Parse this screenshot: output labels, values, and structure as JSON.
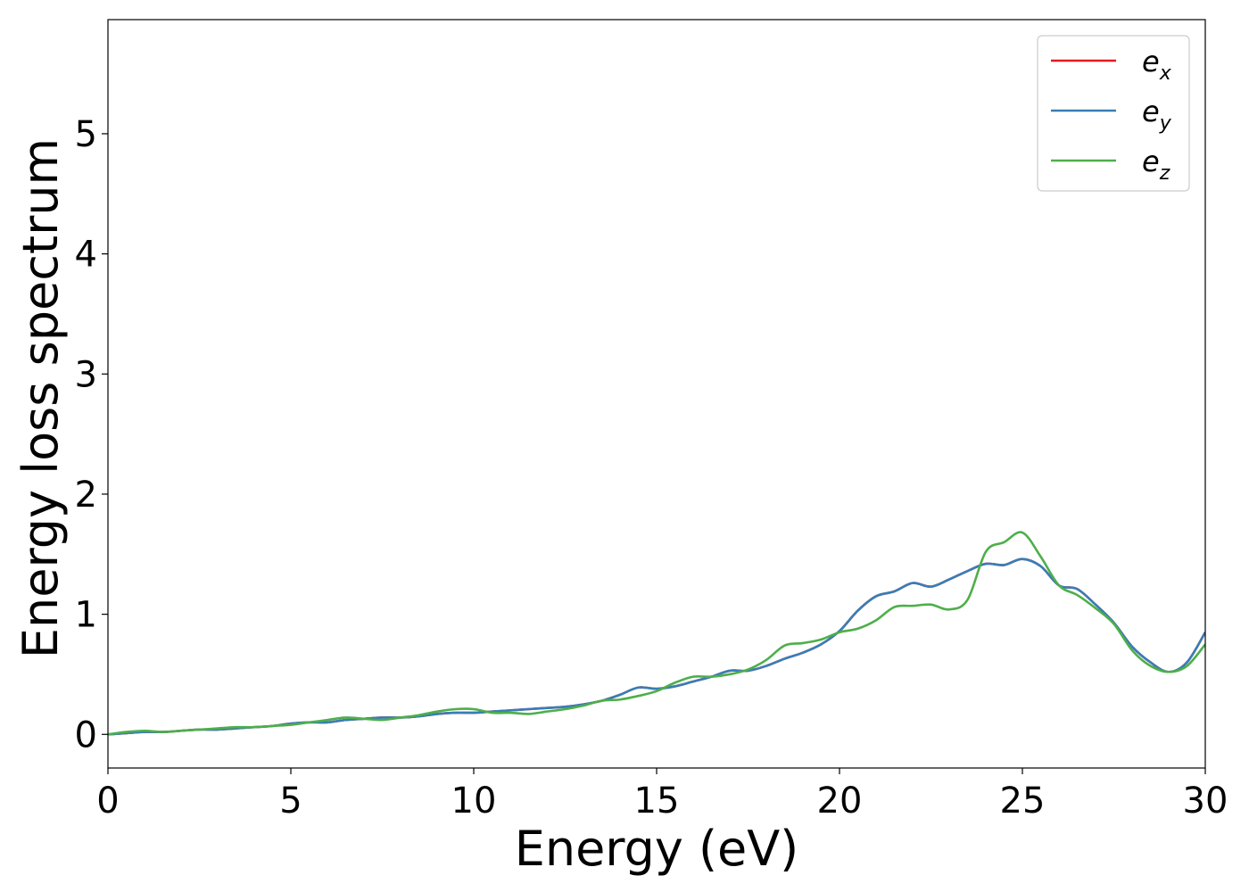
{
  "chart_data": {
    "type": "line",
    "xlabel": "Energy (eV)",
    "ylabel": "Energy loss spectrum",
    "xlim": [
      0,
      30
    ],
    "ylim": [
      -0.28,
      5.95
    ],
    "xticks": [
      0,
      5,
      10,
      15,
      20,
      25,
      30
    ],
    "xtick_labels": [
      "0",
      "5",
      "10",
      "15",
      "20",
      "25",
      "30"
    ],
    "yticks": [
      0,
      1,
      2,
      3,
      4,
      5
    ],
    "ytick_labels": [
      "0",
      "1",
      "2",
      "3",
      "4",
      "5"
    ],
    "grid": false,
    "legend_position": "top-right",
    "x": [
      0,
      0.5,
      1,
      1.5,
      2,
      2.5,
      3,
      3.5,
      4,
      4.5,
      5,
      5.5,
      6,
      6.5,
      7,
      7.5,
      8,
      8.5,
      9,
      9.5,
      10,
      10.5,
      11,
      11.5,
      12,
      12.5,
      13,
      13.5,
      14,
      14.5,
      15,
      15.5,
      16,
      16.5,
      17,
      17.5,
      18,
      18.5,
      19,
      19.5,
      20,
      20.5,
      21,
      21.5,
      22,
      22.5,
      23,
      23.5,
      24,
      24.5,
      25,
      25.5,
      26,
      26.5,
      27,
      27.5,
      28,
      28.5,
      29,
      29.5,
      30
    ],
    "series": [
      {
        "name": "ex",
        "label_main": "e",
        "label_sub": "x",
        "color": "#e41a1c",
        "values": [
          0.0,
          0.01,
          0.02,
          0.02,
          0.03,
          0.04,
          0.04,
          0.05,
          0.06,
          0.07,
          0.09,
          0.1,
          0.1,
          0.12,
          0.13,
          0.14,
          0.14,
          0.15,
          0.17,
          0.18,
          0.18,
          0.19,
          0.2,
          0.21,
          0.22,
          0.23,
          0.25,
          0.28,
          0.33,
          0.39,
          0.38,
          0.4,
          0.44,
          0.48,
          0.53,
          0.53,
          0.57,
          0.63,
          0.68,
          0.75,
          0.86,
          1.03,
          1.15,
          1.19,
          1.26,
          1.23,
          1.29,
          1.36,
          1.42,
          1.41,
          1.46,
          1.4,
          1.24,
          1.21,
          1.08,
          0.93,
          0.73,
          0.6,
          0.52,
          0.6,
          0.85
        ]
      },
      {
        "name": "ey",
        "label_main": "e",
        "label_sub": "y",
        "color": "#377eb8",
        "values": [
          0.0,
          0.01,
          0.02,
          0.02,
          0.03,
          0.04,
          0.04,
          0.05,
          0.06,
          0.07,
          0.09,
          0.1,
          0.1,
          0.12,
          0.13,
          0.14,
          0.14,
          0.15,
          0.17,
          0.18,
          0.18,
          0.19,
          0.2,
          0.21,
          0.22,
          0.23,
          0.25,
          0.28,
          0.33,
          0.39,
          0.38,
          0.4,
          0.44,
          0.48,
          0.53,
          0.53,
          0.57,
          0.63,
          0.68,
          0.75,
          0.86,
          1.03,
          1.15,
          1.19,
          1.26,
          1.23,
          1.29,
          1.36,
          1.42,
          1.41,
          1.46,
          1.4,
          1.24,
          1.21,
          1.08,
          0.93,
          0.73,
          0.6,
          0.52,
          0.6,
          0.85
        ]
      },
      {
        "name": "ez",
        "label_main": "e",
        "label_sub": "z",
        "color": "#4daf4a",
        "values": [
          0.0,
          0.02,
          0.03,
          0.02,
          0.03,
          0.04,
          0.05,
          0.06,
          0.06,
          0.07,
          0.08,
          0.1,
          0.12,
          0.14,
          0.13,
          0.12,
          0.14,
          0.16,
          0.19,
          0.21,
          0.21,
          0.18,
          0.18,
          0.17,
          0.19,
          0.21,
          0.24,
          0.28,
          0.29,
          0.32,
          0.36,
          0.43,
          0.48,
          0.48,
          0.5,
          0.54,
          0.62,
          0.74,
          0.76,
          0.79,
          0.85,
          0.88,
          0.95,
          1.06,
          1.07,
          1.08,
          1.04,
          1.12,
          1.52,
          1.6,
          1.68,
          1.48,
          1.24,
          1.16,
          1.05,
          0.92,
          0.7,
          0.57,
          0.52,
          0.57,
          0.75
        ]
      }
    ]
  }
}
